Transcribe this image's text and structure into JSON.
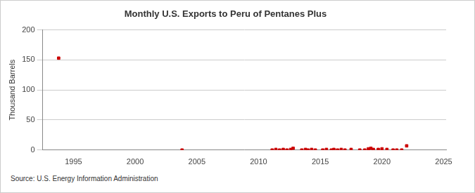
{
  "chart_data": {
    "type": "scatter",
    "title": "Monthly U.S. Exports to Peru of Pentanes Plus",
    "y_label": "Thousand Barrels",
    "source": "Source: U.S. Energy Information Administration",
    "x": [
      1993.8,
      2003.8,
      2011.1,
      2011.4,
      2011.7,
      2012.0,
      2012.3,
      2012.6,
      2012.8,
      2013.5,
      2013.8,
      2014.0,
      2014.3,
      2014.6,
      2015.2,
      2015.5,
      2015.9,
      2016.1,
      2016.4,
      2016.7,
      2017.0,
      2017.5,
      2018.2,
      2018.6,
      2018.9,
      2019.1,
      2019.3,
      2019.7,
      2020.0,
      2020.4,
      2020.9,
      2021.2,
      2021.6,
      2022.0
    ],
    "values": [
      153,
      0,
      0,
      1,
      0,
      1,
      0,
      1,
      3,
      0,
      1,
      0,
      1,
      0,
      0,
      1,
      0,
      1,
      0,
      1,
      0,
      1,
      0,
      0,
      2,
      3,
      1,
      1,
      2,
      1,
      0,
      0,
      0,
      7
    ],
    "color": "#cc0000",
    "marker": "square",
    "xlim": [
      1992.5,
      2025.2
    ],
    "xticks": [
      1995,
      2000,
      2005,
      2010,
      2015,
      2020,
      2025
    ],
    "ylim": [
      0,
      200
    ],
    "yticks": [
      0,
      50,
      100,
      150,
      200
    ],
    "grid": true
  }
}
